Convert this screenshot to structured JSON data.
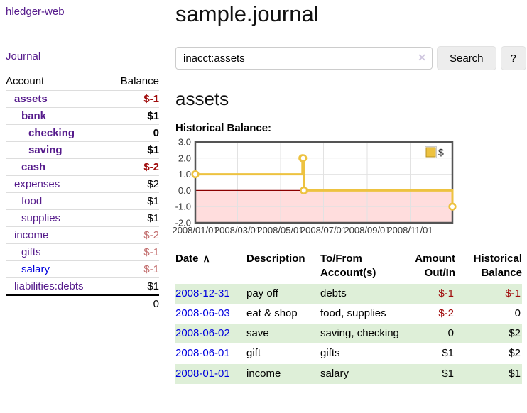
{
  "sidebar": {
    "brand": "hledger-web",
    "nav": {
      "journal": "Journal"
    },
    "accounts_header": {
      "account": "Account",
      "balance": "Balance"
    },
    "accounts": [
      {
        "name": "assets",
        "balance": "$-1",
        "indent": 1,
        "bold": true,
        "negative": true
      },
      {
        "name": "bank",
        "balance": "$1",
        "indent": 2,
        "bold": true,
        "negative": false
      },
      {
        "name": "checking",
        "balance": "0",
        "indent": 3,
        "bold": true,
        "negative": false
      },
      {
        "name": "saving",
        "balance": "$1",
        "indent": 3,
        "bold": true,
        "negative": false
      },
      {
        "name": "cash",
        "balance": "$-2",
        "indent": 2,
        "bold": true,
        "negative": true
      },
      {
        "name": "expenses",
        "balance": "$2",
        "indent": 1,
        "bold": false,
        "negative": false
      },
      {
        "name": "food",
        "balance": "$1",
        "indent": 2,
        "bold": false,
        "negative": false
      },
      {
        "name": "supplies",
        "balance": "$1",
        "indent": 2,
        "bold": false,
        "negative": false
      },
      {
        "name": "income",
        "balance": "$-2",
        "indent": 1,
        "bold": false,
        "negative": true
      },
      {
        "name": "gifts",
        "balance": "$-1",
        "indent": 2,
        "bold": false,
        "negative": true
      },
      {
        "name": "salary",
        "balance": "$-1",
        "indent": 2,
        "bold": false,
        "negative": true,
        "link_color": "blue"
      },
      {
        "name": "liabilities:debts",
        "balance": "$1",
        "indent": 1,
        "bold": false,
        "negative": false
      }
    ],
    "total": "0"
  },
  "header": {
    "title": "sample.journal"
  },
  "search": {
    "value": "inacct:assets",
    "clear_icon": "✕",
    "button": "Search",
    "help_button": "?"
  },
  "account_page": {
    "title": "assets",
    "chart_label": "Historical Balance:"
  },
  "chart_data": {
    "type": "line",
    "title": "Historical Balance:",
    "style": "step-line-with-markers",
    "x_range": [
      "2008-01-01",
      "2008-12-31"
    ],
    "ylim": [
      -2,
      3
    ],
    "y_ticks": [
      3,
      2,
      1,
      0,
      -1,
      -2
    ],
    "x_ticks": [
      "2008/01/01",
      "2008/03/01",
      "2008/05/01",
      "2008/07/01",
      "2008/09/01",
      "2008/11/01"
    ],
    "grid": true,
    "legend": {
      "position": "top-right",
      "label": "$"
    },
    "series": [
      {
        "name": "$",
        "color": "#edc240",
        "points": [
          {
            "date": "2008-01-01",
            "value": 1
          },
          {
            "date": "2008-06-01",
            "value": 2
          },
          {
            "date": "2008-06-02",
            "value": 2
          },
          {
            "date": "2008-06-03",
            "value": 0
          },
          {
            "date": "2008-12-31",
            "value": -1
          }
        ]
      }
    ],
    "colors": {
      "negative_region": "#ffdddd",
      "zero_line": "#8b0000",
      "grid": "#e2e2e2",
      "border": "#545454",
      "tick_text": "#383838"
    }
  },
  "register": {
    "sort_indicator": "∧",
    "columns": [
      {
        "label": "Date"
      },
      {
        "label": "Description"
      },
      {
        "label": "To/From Account(s)"
      },
      {
        "label": "Amount Out/In",
        "align": "right"
      },
      {
        "label": "Historical Balance",
        "align": "right"
      }
    ],
    "rows": [
      {
        "date": "2008-12-31",
        "description": "pay off",
        "accounts": "debts",
        "amount": "$-1",
        "amount_negative": true,
        "balance": "$-1",
        "balance_negative": true
      },
      {
        "date": "2008-06-03",
        "description": "eat & shop",
        "accounts": "food, supplies",
        "amount": "$-2",
        "amount_negative": true,
        "balance": "0",
        "balance_negative": false
      },
      {
        "date": "2008-06-02",
        "description": "save",
        "accounts": "saving, checking",
        "amount": "0",
        "amount_negative": false,
        "balance": "$2",
        "balance_negative": false
      },
      {
        "date": "2008-06-01",
        "description": "gift",
        "accounts": "gifts",
        "amount": "$1",
        "amount_negative": false,
        "balance": "$2",
        "balance_negative": false
      },
      {
        "date": "2008-01-01",
        "description": "income",
        "accounts": "salary",
        "amount": "$1",
        "amount_negative": false,
        "balance": "$1",
        "balance_negative": false
      }
    ]
  }
}
